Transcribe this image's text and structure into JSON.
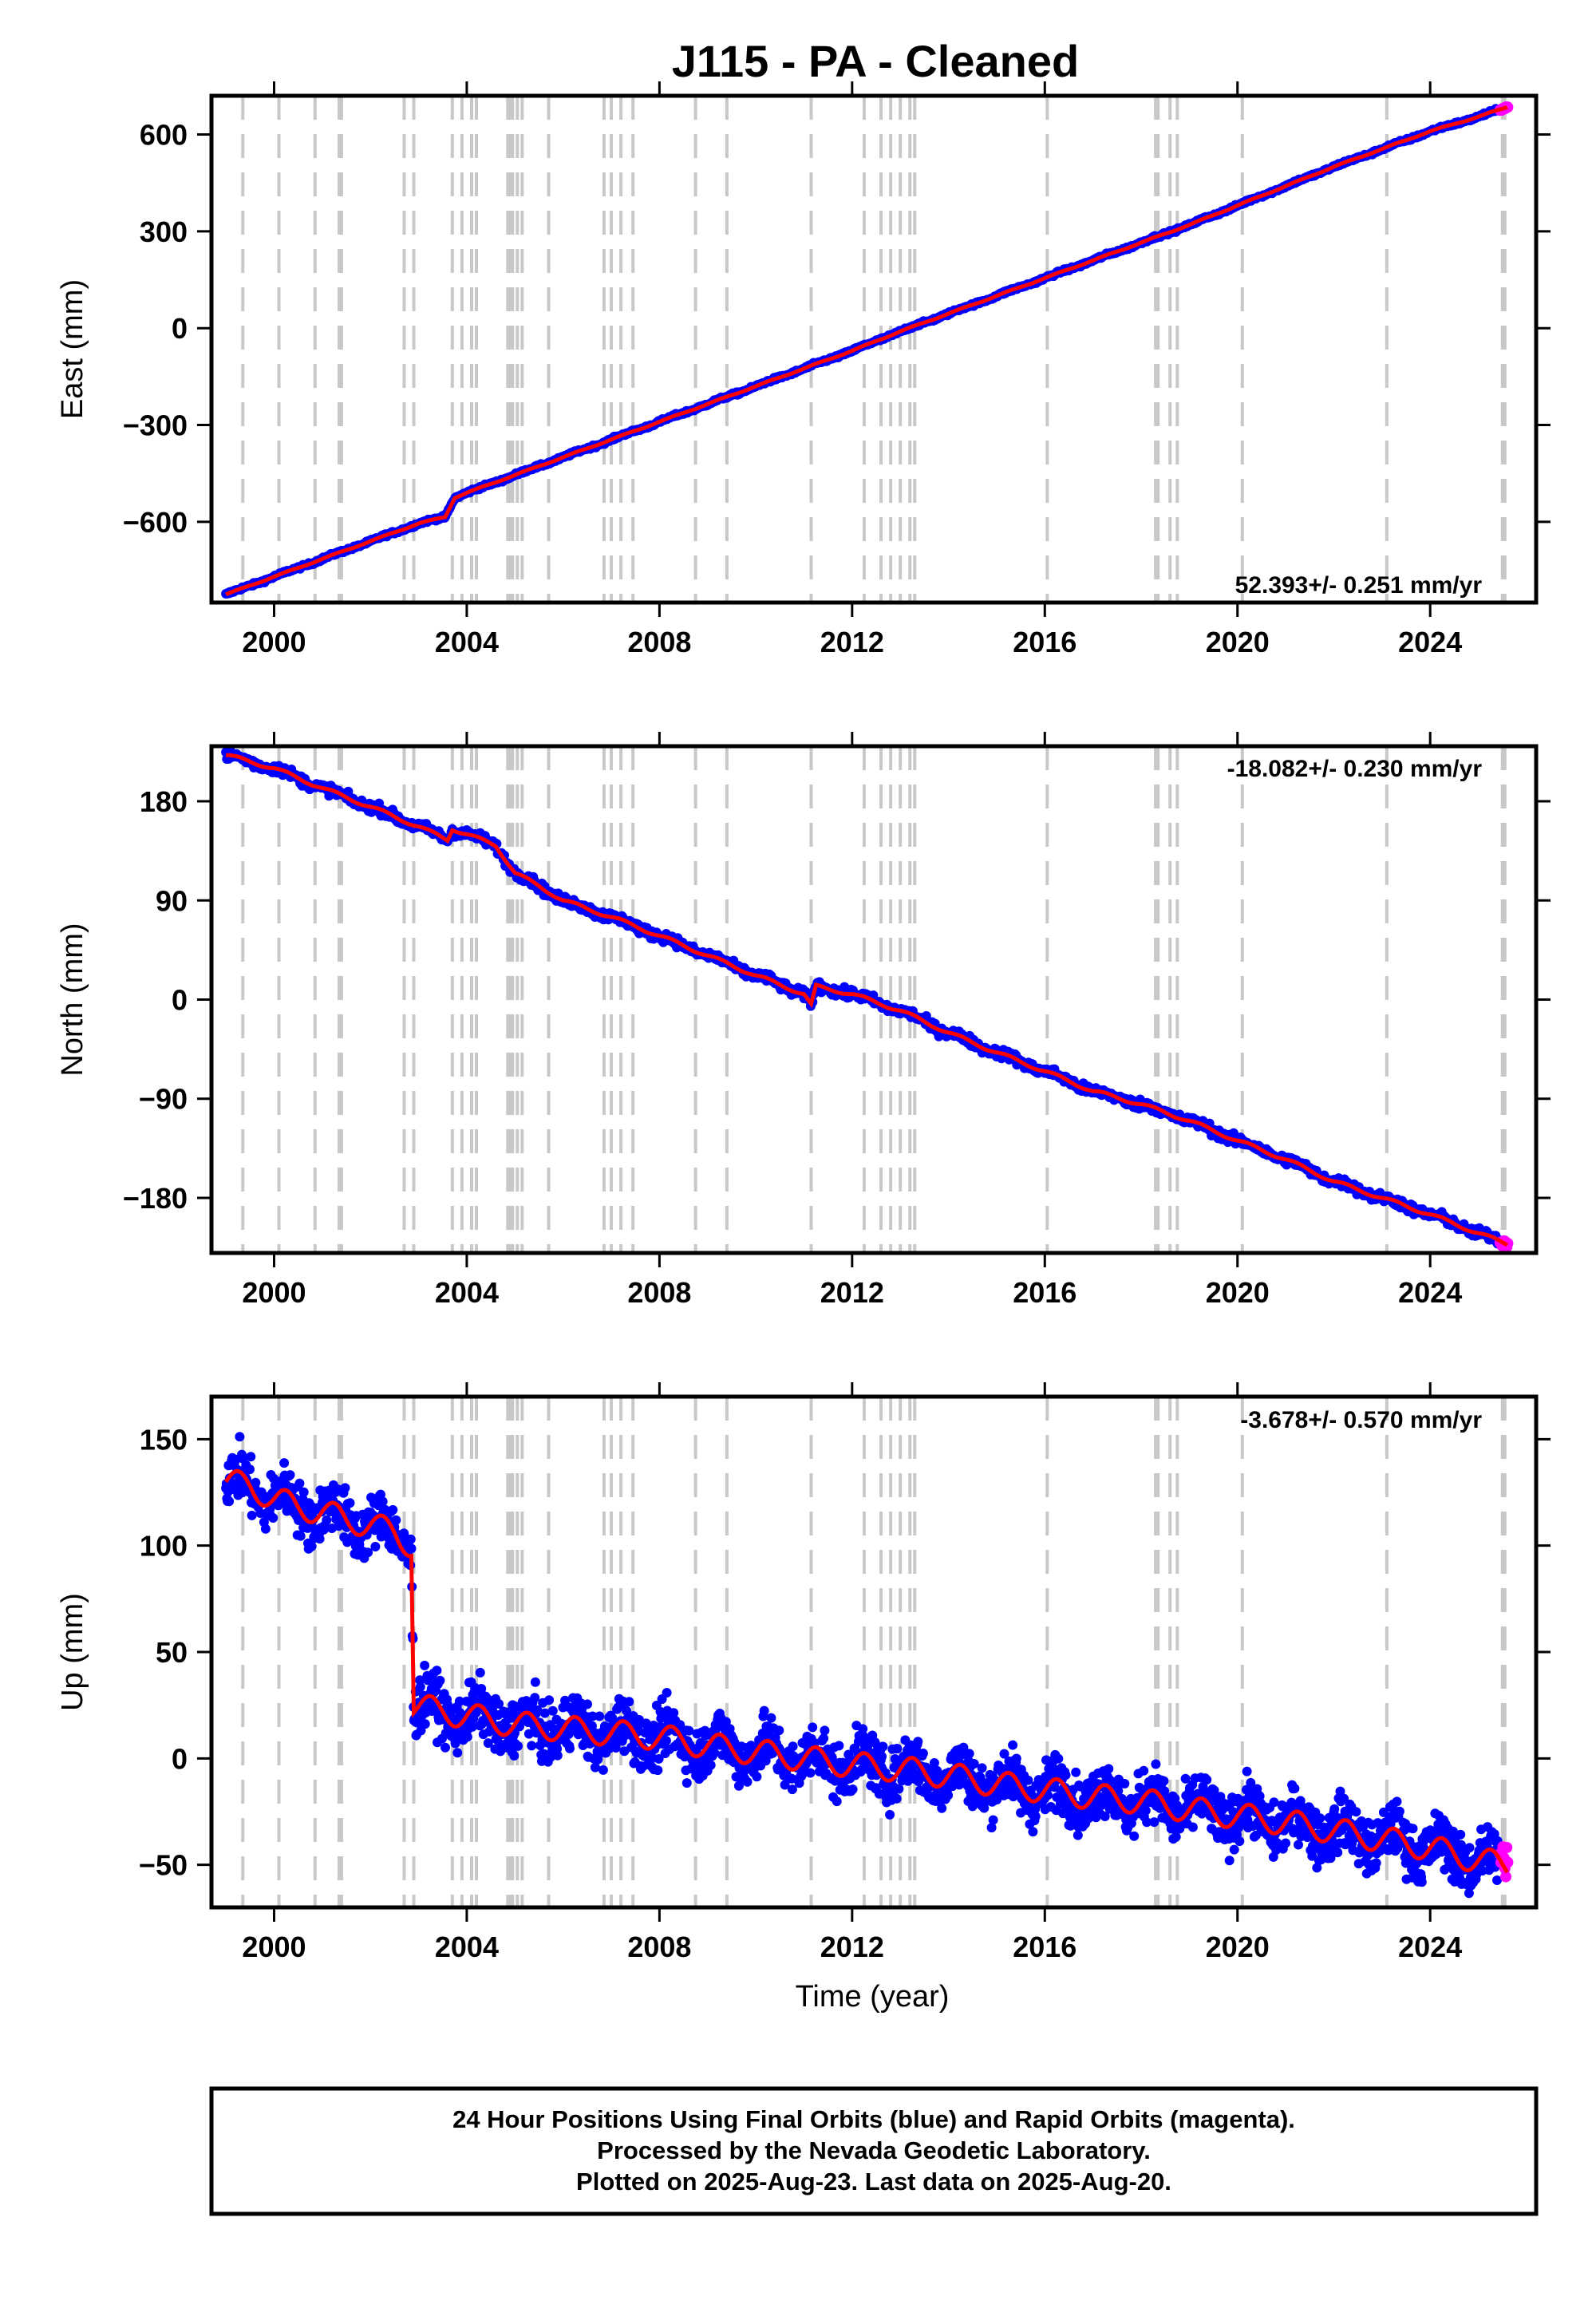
{
  "title": "J115  - PA - Cleaned",
  "xlabel": "Time (year)",
  "colors": {
    "final_orbits": "#0000ff",
    "rapid_orbits": "#ff00ff",
    "model": "#ff0000",
    "event_lines": "#c8c8c8",
    "frame": "#000000"
  },
  "event_years": [
    1999.35,
    2000.1,
    2000.85,
    2001.35,
    2001.4,
    2002.7,
    2002.9,
    2003.7,
    2003.9,
    2004.1,
    2004.2,
    2004.85,
    2004.9,
    2004.95,
    2005.05,
    2005.15,
    2005.7,
    2006.85,
    2007.0,
    2007.2,
    2007.45,
    2008.75,
    2009.4,
    2011.15,
    2012.25,
    2012.6,
    2012.8,
    2013.0,
    2013.2,
    2013.3,
    2016.05,
    2018.3,
    2018.35,
    2018.6,
    2018.75,
    2020.1,
    2023.1,
    2025.5,
    2025.55
  ],
  "footer": {
    "line1": "24 Hour Positions Using Final Orbits (blue) and Rapid Orbits (magenta).",
    "line2": "Processed by the Nevada Geodetic Laboratory.",
    "line3": "Plotted on 2025-Aug-23. Last data on 2025-Aug-20."
  },
  "chart_data": [
    {
      "type": "scatter",
      "panel": "east",
      "ylabel": "East (mm)",
      "rate_label": "52.393+/- 0.251 mm/yr",
      "xlim": [
        1998.7,
        2026.2
      ],
      "ylim": [
        -850,
        720
      ],
      "xticks": [
        2000,
        2004,
        2008,
        2012,
        2016,
        2020,
        2024
      ],
      "yticks": [
        -600,
        -300,
        0,
        300,
        600
      ],
      "ytick_labels": [
        "−600",
        "−300",
        "0",
        "300",
        "600"
      ],
      "series": [
        {
          "x": [
            1999.0,
            2000.0,
            2001.0,
            2002.0,
            2003.0,
            2003.55,
            2003.75,
            2004.0,
            2005.0,
            2006.0,
            2007.0,
            2008.0,
            2009.0,
            2010.0,
            2011.0,
            2012.0,
            2013.0,
            2014.0,
            2015.0,
            2016.0,
            2017.0,
            2018.0,
            2019.0,
            2020.0,
            2021.0,
            2022.0,
            2023.0,
            2024.0,
            2025.0,
            2025.6
          ],
          "y": [
            -825,
            -770,
            -715,
            -660,
            -605,
            -585,
            -525,
            -510,
            -455,
            -400,
            -345,
            -290,
            -235,
            -180,
            -125,
            -70,
            -10,
            45,
            100,
            155,
            210,
            265,
            320,
            380,
            440,
            500,
            555,
            610,
            655,
            685
          ]
        }
      ]
    },
    {
      "type": "scatter",
      "panel": "north",
      "ylabel": "North (mm)",
      "rate_label": "-18.082+/- 0.230 mm/yr",
      "xlim": [
        1998.7,
        2026.2
      ],
      "ylim": [
        -230,
        230
      ],
      "xticks": [
        2000,
        2004,
        2008,
        2012,
        2016,
        2020,
        2024
      ],
      "yticks": [
        -180,
        -90,
        0,
        90,
        180
      ],
      "ytick_labels": [
        "−180",
        "−90",
        "0",
        "90",
        "180"
      ],
      "series": [
        {
          "x": [
            1999.0,
            2000.0,
            2001.0,
            2002.0,
            2003.0,
            2003.6,
            2003.7,
            2004.0,
            2004.6,
            2005.0,
            2005.5,
            2006.0,
            2007.0,
            2008.0,
            2009.0,
            2010.0,
            2011.0,
            2011.15,
            2011.25,
            2012.0,
            2013.0,
            2014.0,
            2015.0,
            2016.0,
            2017.0,
            2018.0,
            2019.0,
            2020.0,
            2021.0,
            2022.0,
            2023.0,
            2024.0,
            2025.0,
            2025.6
          ],
          "y": [
            222,
            210,
            192,
            175,
            157,
            145,
            155,
            150,
            140,
            115,
            103,
            90,
            75,
            58,
            40,
            22,
            5,
            -5,
            12,
            5,
            -10,
            -30,
            -48,
            -65,
            -83,
            -95,
            -110,
            -128,
            -145,
            -165,
            -180,
            -195,
            -212,
            -222
          ]
        }
      ]
    },
    {
      "type": "scatter",
      "panel": "up",
      "ylabel": "Up (mm)",
      "rate_label": "-3.678+/- 0.570 mm/yr",
      "xlim": [
        1998.7,
        2026.2
      ],
      "ylim": [
        -70,
        170
      ],
      "xticks": [
        2000,
        2004,
        2008,
        2012,
        2016,
        2020,
        2024
      ],
      "yticks": [
        -50,
        0,
        50,
        100,
        150
      ],
      "ytick_labels": [
        "−50",
        "0",
        "50",
        "100",
        "150"
      ],
      "series": [
        {
          "x": [
            1999.0,
            1999.5,
            2000.0,
            2000.5,
            2001.0,
            2001.5,
            2002.0,
            2002.5,
            2002.85,
            2002.9,
            2003.5,
            2004.0,
            2005.0,
            2006.0,
            2007.0,
            2008.0,
            2009.0,
            2010.0,
            2011.0,
            2012.0,
            2013.0,
            2014.0,
            2015.0,
            2016.0,
            2017.0,
            2018.0,
            2019.0,
            2020.0,
            2021.0,
            2022.0,
            2023.0,
            2024.0,
            2025.0,
            2025.6
          ],
          "y": [
            130,
            128,
            122,
            118,
            116,
            112,
            110,
            106,
            100,
            25,
            22,
            20,
            16,
            14,
            12,
            10,
            6,
            3,
            0,
            -3,
            -5,
            -8,
            -12,
            -15,
            -18,
            -20,
            -24,
            -27,
            -30,
            -34,
            -38,
            -42,
            -48,
            -50
          ]
        }
      ]
    }
  ]
}
